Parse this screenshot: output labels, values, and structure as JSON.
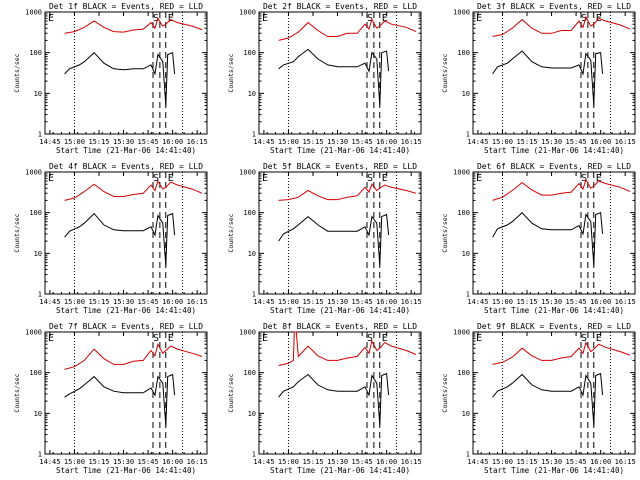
{
  "chart_data": [
    {
      "type": "line",
      "title": "Det 1f BLACK = Events, RED = LLD",
      "xlabel": "Start Time (21-Mar-06 14:41:40)",
      "ylabel": "Counts/sec",
      "yscale": "log",
      "ylim": [
        1,
        1000
      ],
      "xlim": [
        14.7,
        16.35
      ],
      "yticks": [
        "1",
        "10",
        "100",
        "1000"
      ],
      "xticks": [
        "14:45",
        "15:00",
        "15:15",
        "15:30",
        "15:45",
        "16:00",
        "16:15"
      ],
      "markers": [
        "E",
        "S",
        "E"
      ],
      "series": [
        {
          "name": "Events",
          "color": "#000000",
          "x": [
            14.9,
            14.95,
            15.05,
            15.1,
            15.2,
            15.3,
            15.4,
            15.5,
            15.6,
            15.7,
            15.78,
            15.82,
            15.85,
            15.9,
            15.93,
            15.95,
            16.0,
            16.02
          ],
          "y": [
            30,
            40,
            50,
            60,
            100,
            55,
            40,
            38,
            40,
            40,
            50,
            30,
            90,
            60,
            5,
            90,
            100,
            30
          ]
        },
        {
          "name": "LLD",
          "color": "#d40000",
          "x": [
            14.9,
            15.0,
            15.1,
            15.2,
            15.3,
            15.4,
            15.5,
            15.6,
            15.7,
            15.78,
            15.82,
            15.85,
            15.9,
            15.93,
            15.98,
            16.05,
            16.2,
            16.3
          ],
          "y": [
            300,
            330,
            420,
            600,
            420,
            330,
            320,
            360,
            380,
            550,
            400,
            700,
            450,
            500,
            650,
            550,
            450,
            370
          ]
        }
      ]
    },
    {
      "type": "line",
      "title": "Det 2f BLACK = Events, RED = LLD",
      "xlabel": "Start Time (21-Mar-06 14:41:40)",
      "ylabel": "Counts/sec",
      "yscale": "log",
      "ylim": [
        1,
        1000
      ],
      "xlim": [
        14.7,
        16.35
      ],
      "yticks": [
        "1",
        "10",
        "100",
        "1000"
      ],
      "xticks": [
        "14:45",
        "15:00",
        "15:15",
        "15:30",
        "15:45",
        "16:00",
        "16:15"
      ],
      "markers": [
        "E",
        "S",
        "E"
      ],
      "series": [
        {
          "name": "Events",
          "color": "#000000",
          "x": [
            14.9,
            14.95,
            15.05,
            15.1,
            15.2,
            15.3,
            15.4,
            15.5,
            15.6,
            15.7,
            15.78,
            15.82,
            15.85,
            15.9,
            15.93,
            15.95,
            16.0,
            16.02
          ],
          "y": [
            40,
            50,
            60,
            80,
            120,
            70,
            50,
            45,
            45,
            45,
            55,
            35,
            100,
            70,
            5,
            100,
            110,
            35
          ]
        },
        {
          "name": "LLD",
          "color": "#d40000",
          "x": [
            14.9,
            15.0,
            15.1,
            15.2,
            15.3,
            15.4,
            15.5,
            15.6,
            15.7,
            15.78,
            15.82,
            15.85,
            15.9,
            15.93,
            15.98,
            16.05,
            16.2,
            16.3
          ],
          "y": [
            200,
            230,
            320,
            550,
            350,
            250,
            250,
            300,
            300,
            500,
            380,
            650,
            400,
            450,
            600,
            500,
            420,
            330
          ]
        }
      ]
    },
    {
      "type": "line",
      "title": "Det 3f BLACK = Events, RED = LLD",
      "xlabel": "Start Time (21-Mar-06 14:41:40)",
      "ylabel": "Counts/sec",
      "yscale": "log",
      "ylim": [
        1,
        1000
      ],
      "xlim": [
        14.7,
        16.35
      ],
      "yticks": [
        "1",
        "10",
        "100",
        "1000"
      ],
      "xticks": [
        "14:45",
        "15:00",
        "15:15",
        "15:30",
        "15:45",
        "16:00",
        "16:15"
      ],
      "markers": [
        "E",
        "S",
        "E"
      ],
      "series": [
        {
          "name": "Events",
          "color": "#000000",
          "x": [
            14.9,
            14.95,
            15.05,
            15.1,
            15.2,
            15.3,
            15.4,
            15.5,
            15.6,
            15.7,
            15.78,
            15.82,
            15.85,
            15.9,
            15.93,
            15.95,
            16.0,
            16.02
          ],
          "y": [
            30,
            45,
            55,
            70,
            110,
            60,
            45,
            42,
            42,
            42,
            50,
            30,
            95,
            65,
            5,
            95,
            100,
            30
          ]
        },
        {
          "name": "LLD",
          "color": "#d40000",
          "x": [
            14.9,
            15.0,
            15.1,
            15.2,
            15.3,
            15.4,
            15.5,
            15.6,
            15.7,
            15.78,
            15.82,
            15.85,
            15.9,
            15.93,
            15.98,
            16.05,
            16.2,
            16.3
          ],
          "y": [
            250,
            280,
            400,
            650,
            400,
            300,
            300,
            350,
            350,
            600,
            420,
            750,
            450,
            500,
            700,
            600,
            480,
            380
          ]
        }
      ]
    },
    {
      "type": "line",
      "title": "Det 4f BLACK = Events, RED = LLD",
      "xlabel": "Start Time (21-Mar-06 14:41:40)",
      "ylabel": "Counts/sec",
      "yscale": "log",
      "ylim": [
        1,
        1000
      ],
      "xlim": [
        14.7,
        16.35
      ],
      "yticks": [
        "1",
        "10",
        "100",
        "1000"
      ],
      "xticks": [
        "14:45",
        "15:00",
        "15:15",
        "15:30",
        "15:45",
        "16:00",
        "16:15"
      ],
      "markers": [
        "E",
        "S",
        "E"
      ],
      "series": [
        {
          "name": "Events",
          "color": "#000000",
          "x": [
            14.9,
            14.95,
            15.05,
            15.1,
            15.2,
            15.3,
            15.4,
            15.5,
            15.6,
            15.7,
            15.78,
            15.82,
            15.85,
            15.9,
            15.93,
            15.95,
            16.0,
            16.02
          ],
          "y": [
            25,
            35,
            45,
            55,
            95,
            50,
            38,
            36,
            36,
            36,
            45,
            28,
            85,
            55,
            5,
            85,
            95,
            28
          ]
        },
        {
          "name": "LLD",
          "color": "#d40000",
          "x": [
            14.9,
            15.0,
            15.1,
            15.2,
            15.3,
            15.4,
            15.5,
            15.6,
            15.7,
            15.78,
            15.82,
            15.85,
            15.9,
            15.93,
            15.98,
            16.05,
            16.2,
            16.3
          ],
          "y": [
            200,
            230,
            330,
            500,
            330,
            250,
            250,
            280,
            300,
            480,
            350,
            600,
            380,
            420,
            560,
            480,
            380,
            300
          ]
        }
      ]
    },
    {
      "type": "line",
      "title": "Det 5f BLACK = Events, RED = LLD",
      "xlabel": "Start Time (21-Mar-06 14:41:40)",
      "ylabel": "Counts/sec",
      "yscale": "log",
      "ylim": [
        1,
        1000
      ],
      "xlim": [
        14.7,
        16.35
      ],
      "yticks": [
        "1",
        "10",
        "100",
        "1000"
      ],
      "xticks": [
        "14:45",
        "15:00",
        "15:15",
        "15:30",
        "15:45",
        "16:00",
        "16:15"
      ],
      "markers": [
        "E",
        "S",
        "E"
      ],
      "series": [
        {
          "name": "Events",
          "color": "#000000",
          "x": [
            14.9,
            14.95,
            15.05,
            15.1,
            15.2,
            15.3,
            15.4,
            15.5,
            15.6,
            15.7,
            15.78,
            15.82,
            15.85,
            15.9,
            15.93,
            15.95,
            16.0,
            16.02
          ],
          "y": [
            20,
            30,
            40,
            50,
            80,
            50,
            35,
            35,
            35,
            35,
            45,
            28,
            80,
            55,
            5,
            80,
            90,
            28
          ]
        },
        {
          "name": "LLD",
          "color": "#d40000",
          "x": [
            14.9,
            15.0,
            15.1,
            15.2,
            15.3,
            15.4,
            15.5,
            15.6,
            15.7,
            15.78,
            15.82,
            15.85,
            15.9,
            15.93,
            15.98,
            16.05,
            16.2,
            16.3
          ],
          "y": [
            200,
            210,
            240,
            350,
            260,
            210,
            210,
            240,
            260,
            420,
            320,
            500,
            350,
            400,
            480,
            420,
            350,
            300
          ]
        }
      ]
    },
    {
      "type": "line",
      "title": "Det 6f BLACK = Events, RED = LLD",
      "xlabel": "Start Time (21-Mar-06 14:41:40)",
      "ylabel": "Counts/sec",
      "yscale": "log",
      "ylim": [
        1,
        1000
      ],
      "xlim": [
        14.7,
        16.35
      ],
      "yticks": [
        "1",
        "10",
        "100",
        "1000"
      ],
      "xticks": [
        "14:45",
        "15:00",
        "15:15",
        "15:30",
        "15:45",
        "16:00",
        "16:15"
      ],
      "markers": [
        "E",
        "S",
        "E"
      ],
      "series": [
        {
          "name": "Events",
          "color": "#000000",
          "x": [
            14.9,
            14.95,
            15.05,
            15.1,
            15.2,
            15.3,
            15.4,
            15.5,
            15.6,
            15.7,
            15.78,
            15.82,
            15.85,
            15.9,
            15.93,
            15.95,
            16.0,
            16.02
          ],
          "y": [
            25,
            40,
            50,
            60,
            100,
            55,
            40,
            38,
            38,
            38,
            48,
            30,
            90,
            60,
            5,
            90,
            100,
            30
          ]
        },
        {
          "name": "LLD",
          "color": "#d40000",
          "x": [
            14.9,
            15.0,
            15.1,
            15.2,
            15.3,
            15.4,
            15.5,
            15.6,
            15.7,
            15.78,
            15.82,
            15.85,
            15.9,
            15.93,
            15.98,
            16.05,
            16.2,
            16.3
          ],
          "y": [
            200,
            240,
            350,
            550,
            360,
            270,
            270,
            300,
            320,
            520,
            380,
            650,
            400,
            450,
            600,
            520,
            420,
            330
          ]
        }
      ]
    },
    {
      "type": "line",
      "title": "Det 7f BLACK = Events, RED = LLD",
      "xlabel": "Start Time (21-Mar-06 14:41:40)",
      "ylabel": "Counts/sec",
      "yscale": "log",
      "ylim": [
        1,
        1000
      ],
      "xlim": [
        14.7,
        16.35
      ],
      "yticks": [
        "1",
        "10",
        "100",
        "1000"
      ],
      "xticks": [
        "14:45",
        "15:00",
        "15:15",
        "15:30",
        "15:45",
        "16:00",
        "16:15"
      ],
      "markers": [
        "E",
        "S",
        "E"
      ],
      "series": [
        {
          "name": "Events",
          "color": "#000000",
          "x": [
            14.9,
            14.95,
            15.05,
            15.1,
            15.2,
            15.3,
            15.4,
            15.5,
            15.6,
            15.7,
            15.78,
            15.82,
            15.85,
            15.9,
            15.93,
            15.95,
            16.0,
            16.02
          ],
          "y": [
            25,
            30,
            40,
            50,
            80,
            45,
            35,
            32,
            32,
            32,
            42,
            28,
            80,
            55,
            5,
            80,
            90,
            28
          ]
        },
        {
          "name": "LLD",
          "color": "#d40000",
          "x": [
            14.9,
            15.0,
            15.1,
            15.2,
            15.3,
            15.4,
            15.5,
            15.6,
            15.7,
            15.78,
            15.82,
            15.85,
            15.9,
            15.93,
            15.98,
            16.05,
            16.2,
            16.3
          ],
          "y": [
            120,
            140,
            200,
            380,
            220,
            160,
            160,
            190,
            200,
            350,
            260,
            500,
            300,
            350,
            450,
            380,
            300,
            250
          ]
        }
      ]
    },
    {
      "type": "line",
      "title": "Det 8f BLACK = Events, RED = LLD",
      "xlabel": "Start Time (21-Mar-06 14:41:40)",
      "ylabel": "Counts/sec",
      "yscale": "log",
      "ylim": [
        1,
        1000
      ],
      "xlim": [
        14.7,
        16.35
      ],
      "yticks": [
        "1",
        "10",
        "100",
        "1000"
      ],
      "xticks": [
        "14:45",
        "15:00",
        "15:15",
        "15:30",
        "15:45",
        "16:00",
        "16:15"
      ],
      "markers": [
        "E",
        "S",
        "E"
      ],
      "series": [
        {
          "name": "Events",
          "color": "#000000",
          "x": [
            14.9,
            14.95,
            15.05,
            15.1,
            15.2,
            15.3,
            15.4,
            15.5,
            15.6,
            15.7,
            15.78,
            15.82,
            15.85,
            15.9,
            15.93,
            15.95,
            16.0,
            16.02
          ],
          "y": [
            25,
            35,
            45,
            60,
            90,
            50,
            38,
            35,
            35,
            35,
            45,
            28,
            85,
            55,
            5,
            85,
            95,
            28
          ]
        },
        {
          "name": "LLD",
          "color": "#d40000",
          "x": [
            14.9,
            15.0,
            15.05,
            15.06,
            15.08,
            15.1,
            15.2,
            15.3,
            15.4,
            15.5,
            15.6,
            15.7,
            15.78,
            15.82,
            15.85,
            15.9,
            15.93,
            15.98,
            16.05,
            16.2,
            16.3
          ],
          "y": [
            150,
            170,
            200,
            1000,
            1000,
            250,
            450,
            260,
            200,
            200,
            230,
            250,
            420,
            300,
            600,
            350,
            400,
            550,
            450,
            350,
            280
          ]
        }
      ]
    },
    {
      "type": "line",
      "title": "Det 9f BLACK = Events, RED = LLD",
      "xlabel": "Start Time (21-Mar-06 14:41:40)",
      "ylabel": "Counts/sec",
      "yscale": "log",
      "ylim": [
        1,
        1000
      ],
      "xlim": [
        14.7,
        16.35
      ],
      "yticks": [
        "1",
        "10",
        "100",
        "1000"
      ],
      "xticks": [
        "14:45",
        "15:00",
        "15:15",
        "15:30",
        "15:45",
        "16:00",
        "16:15"
      ],
      "markers": [
        "E",
        "S",
        "E"
      ],
      "series": [
        {
          "name": "Events",
          "color": "#000000",
          "x": [
            14.9,
            14.95,
            15.05,
            15.1,
            15.2,
            15.3,
            15.4,
            15.5,
            15.6,
            15.7,
            15.78,
            15.82,
            15.85,
            15.9,
            15.93,
            15.95,
            16.0,
            16.02
          ],
          "y": [
            25,
            35,
            45,
            55,
            90,
            50,
            38,
            35,
            35,
            35,
            45,
            28,
            85,
            55,
            5,
            85,
            95,
            28
          ]
        },
        {
          "name": "LLD",
          "color": "#d40000",
          "x": [
            14.9,
            15.0,
            15.1,
            15.2,
            15.3,
            15.4,
            15.5,
            15.6,
            15.7,
            15.78,
            15.82,
            15.85,
            15.9,
            15.93,
            15.98,
            16.05,
            16.2,
            16.3
          ],
          "y": [
            160,
            180,
            240,
            400,
            260,
            200,
            200,
            230,
            250,
            400,
            300,
            550,
            330,
            380,
            500,
            420,
            330,
            270
          ]
        }
      ]
    }
  ]
}
